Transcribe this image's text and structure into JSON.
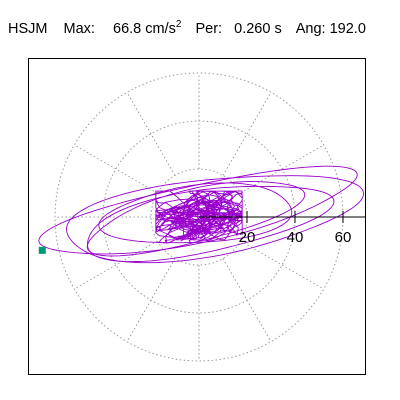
{
  "header": {
    "station": "HSJM",
    "max_label": "Max:",
    "max_value": "66.8",
    "max_unit": "cm/s",
    "max_unit_exp": "2",
    "period_label": "Per:",
    "period_value": "0.260 s",
    "angle_label": "Ang:",
    "angle_value": "192.0"
  },
  "chart_data": {
    "type": "scatter",
    "title": "",
    "xlabel": "",
    "ylabel": "",
    "description_units": "cm/s^2",
    "radial_ticks": [
      20,
      40,
      60
    ],
    "radial_tick_labels": [
      "20",
      "40",
      "60"
    ],
    "grid_ring_radii": [
      20,
      40,
      60
    ],
    "spoke_angles_deg": [
      0,
      30,
      60,
      90,
      120,
      150,
      180,
      210,
      240,
      270,
      300,
      330
    ],
    "grid": "dotted-polar",
    "max_amplitude": 66.8,
    "max_angle_deg": 192.0,
    "colors": {
      "trace": "#9900cc",
      "max_marker": "#009977",
      "grid": "#999999"
    },
    "orbit_envelope": {
      "large_loops": [
        {
          "rx": 66.8,
          "ry": 12.0,
          "rot": 12,
          "cx": 0,
          "cy": 2
        },
        {
          "rx": 62.0,
          "ry": 16.0,
          "rot": 8,
          "cx": 4,
          "cy": 0
        },
        {
          "rx": 52.0,
          "ry": 13.0,
          "rot": 10,
          "cx": 2,
          "cy": -2
        },
        {
          "rx": 46.0,
          "ry": 11.0,
          "rot": 14,
          "cx": -2,
          "cy": 0
        },
        {
          "rx": 40.0,
          "ry": 12.0,
          "rot": 5,
          "cx": 0,
          "cy": 1
        }
      ],
      "max_point": {
        "x": -65.3,
        "y": -13.9
      }
    }
  }
}
